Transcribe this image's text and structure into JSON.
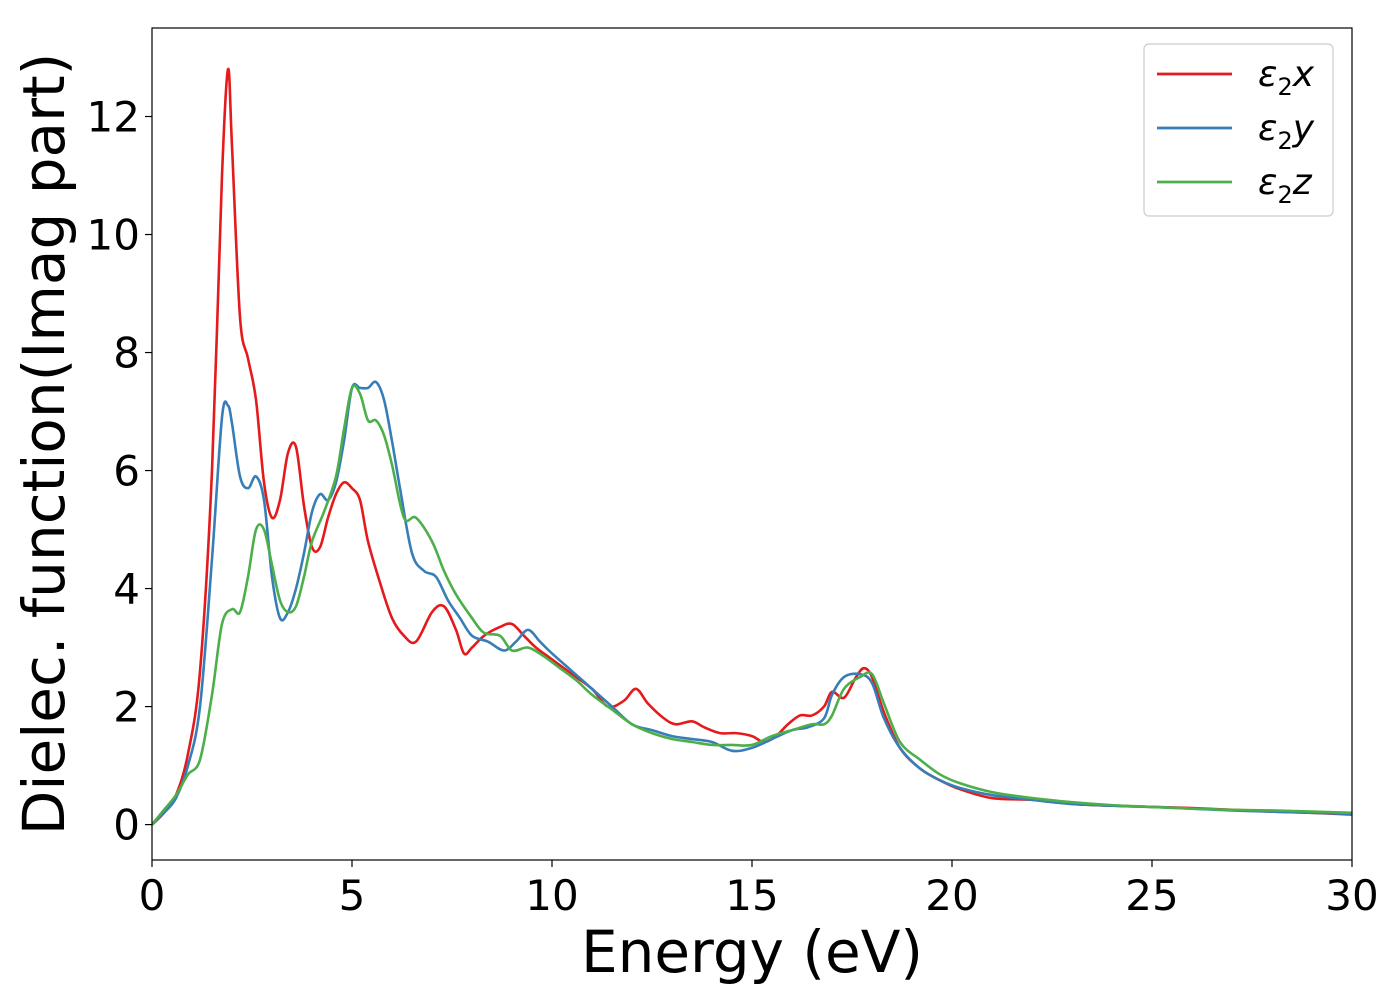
{
  "chart_data": {
    "type": "line",
    "xlabel": "Energy (eV)",
    "ylabel": "Dielec. function(Imag part)",
    "xlim": [
      0,
      30
    ],
    "ylim": [
      -0.6,
      13.5
    ],
    "xticks": [
      0,
      5,
      10,
      15,
      20,
      25,
      30
    ],
    "yticks": [
      0,
      2,
      4,
      6,
      8,
      10,
      12
    ],
    "grid": false,
    "legend_position": "top-right",
    "series": [
      {
        "name": "ε2x",
        "color": "#e41a1c",
        "x": [
          0,
          0.3,
          0.6,
          0.9,
          1.2,
          1.5,
          1.75,
          1.9,
          2.0,
          2.2,
          2.4,
          2.6,
          2.8,
          3.0,
          3.2,
          3.4,
          3.6,
          3.8,
          4.0,
          4.2,
          4.4,
          4.6,
          4.8,
          5.0,
          5.2,
          5.4,
          5.7,
          6.0,
          6.3,
          6.6,
          7.0,
          7.3,
          7.6,
          7.8,
          8.0,
          8.3,
          8.7,
          9.0,
          9.3,
          9.6,
          10.0,
          10.5,
          11.0,
          11.4,
          11.8,
          12.1,
          12.4,
          12.8,
          13.1,
          13.5,
          13.8,
          14.2,
          14.6,
          15.0,
          15.3,
          15.6,
          15.9,
          16.2,
          16.5,
          16.8,
          17.0,
          17.3,
          17.6,
          17.8,
          18.0,
          18.3,
          18.7,
          19.2,
          19.7,
          20.2,
          21.0,
          22.0,
          23.0,
          24.0,
          25.0,
          26.0,
          27.0,
          28.0,
          29.0,
          30.0
        ],
        "y": [
          0.0,
          0.2,
          0.5,
          1.2,
          2.6,
          6.0,
          11.0,
          12.8,
          11.5,
          8.6,
          7.9,
          7.2,
          5.8,
          5.2,
          5.5,
          6.3,
          6.4,
          5.4,
          4.7,
          4.7,
          5.2,
          5.6,
          5.8,
          5.7,
          5.5,
          4.8,
          4.1,
          3.5,
          3.2,
          3.1,
          3.6,
          3.7,
          3.3,
          2.9,
          3.0,
          3.2,
          3.35,
          3.4,
          3.2,
          3.0,
          2.8,
          2.55,
          2.3,
          2.0,
          2.1,
          2.3,
          2.05,
          1.8,
          1.7,
          1.75,
          1.65,
          1.55,
          1.55,
          1.5,
          1.4,
          1.5,
          1.7,
          1.85,
          1.85,
          2.0,
          2.25,
          2.15,
          2.5,
          2.65,
          2.5,
          1.9,
          1.3,
          0.95,
          0.75,
          0.6,
          0.45,
          0.42,
          0.35,
          0.32,
          0.3,
          0.28,
          0.25,
          0.22,
          0.2,
          0.17
        ]
      },
      {
        "name": "ε2y",
        "color": "#377eb8",
        "x": [
          0,
          0.3,
          0.6,
          0.9,
          1.2,
          1.5,
          1.75,
          1.9,
          2.0,
          2.2,
          2.4,
          2.6,
          2.8,
          3.0,
          3.2,
          3.4,
          3.6,
          3.8,
          4.0,
          4.2,
          4.4,
          4.6,
          4.8,
          5.0,
          5.2,
          5.4,
          5.6,
          5.8,
          6.0,
          6.2,
          6.5,
          6.8,
          7.1,
          7.4,
          7.7,
          8.0,
          8.4,
          8.8,
          9.1,
          9.4,
          9.7,
          10.0,
          10.5,
          11.0,
          11.5,
          12.0,
          12.5,
          13.0,
          13.5,
          14.0,
          14.5,
          15.0,
          15.5,
          16.0,
          16.4,
          16.8,
          17.0,
          17.3,
          17.7,
          18.0,
          18.3,
          18.7,
          19.2,
          19.7,
          20.2,
          21.0,
          22.0,
          23.0,
          24.0,
          25.0,
          26.0,
          27.0,
          28.0,
          29.0,
          30.0
        ],
        "y": [
          0.0,
          0.2,
          0.45,
          1.0,
          2.0,
          4.5,
          6.9,
          7.1,
          6.8,
          5.9,
          5.7,
          5.9,
          5.5,
          4.2,
          3.5,
          3.6,
          4.0,
          4.6,
          5.3,
          5.6,
          5.5,
          5.8,
          6.5,
          7.4,
          7.4,
          7.4,
          7.5,
          7.2,
          6.5,
          5.7,
          4.6,
          4.3,
          4.2,
          3.8,
          3.5,
          3.2,
          3.1,
          2.95,
          3.1,
          3.3,
          3.1,
          2.9,
          2.6,
          2.3,
          2.0,
          1.7,
          1.6,
          1.5,
          1.45,
          1.4,
          1.25,
          1.3,
          1.45,
          1.6,
          1.65,
          1.8,
          2.2,
          2.5,
          2.55,
          2.4,
          1.8,
          1.3,
          0.95,
          0.75,
          0.62,
          0.5,
          0.42,
          0.35,
          0.32,
          0.3,
          0.27,
          0.24,
          0.22,
          0.2,
          0.18
        ]
      },
      {
        "name": "ε2z",
        "color": "#4daf4a",
        "x": [
          0,
          0.3,
          0.6,
          0.9,
          1.2,
          1.5,
          1.75,
          2.0,
          2.2,
          2.4,
          2.6,
          2.8,
          3.0,
          3.2,
          3.4,
          3.6,
          3.8,
          4.0,
          4.3,
          4.6,
          4.8,
          5.0,
          5.2,
          5.4,
          5.6,
          5.8,
          6.0,
          6.3,
          6.6,
          7.0,
          7.3,
          7.6,
          8.0,
          8.3,
          8.7,
          9.0,
          9.4,
          9.8,
          10.2,
          10.6,
          11.0,
          11.5,
          12.0,
          12.5,
          13.0,
          13.5,
          14.0,
          14.5,
          15.0,
          15.5,
          16.0,
          16.5,
          16.8,
          17.0,
          17.3,
          17.7,
          18.0,
          18.3,
          18.7,
          19.2,
          19.7,
          20.2,
          21.0,
          22.0,
          23.0,
          24.0,
          25.0,
          26.0,
          27.0,
          28.0,
          29.0,
          30.0
        ],
        "y": [
          0.0,
          0.25,
          0.5,
          0.85,
          1.1,
          2.2,
          3.4,
          3.65,
          3.6,
          4.2,
          5.0,
          5.0,
          4.4,
          3.8,
          3.6,
          3.7,
          4.2,
          4.8,
          5.3,
          5.9,
          6.7,
          7.4,
          7.3,
          6.85,
          6.85,
          6.6,
          6.1,
          5.2,
          5.2,
          4.8,
          4.3,
          3.9,
          3.5,
          3.25,
          3.2,
          2.95,
          3.0,
          2.85,
          2.65,
          2.45,
          2.2,
          1.95,
          1.7,
          1.55,
          1.45,
          1.4,
          1.35,
          1.35,
          1.35,
          1.5,
          1.6,
          1.7,
          1.7,
          1.85,
          2.3,
          2.5,
          2.55,
          2.05,
          1.4,
          1.1,
          0.85,
          0.7,
          0.55,
          0.45,
          0.38,
          0.33,
          0.3,
          0.27,
          0.25,
          0.24,
          0.22,
          0.2
        ]
      }
    ]
  }
}
